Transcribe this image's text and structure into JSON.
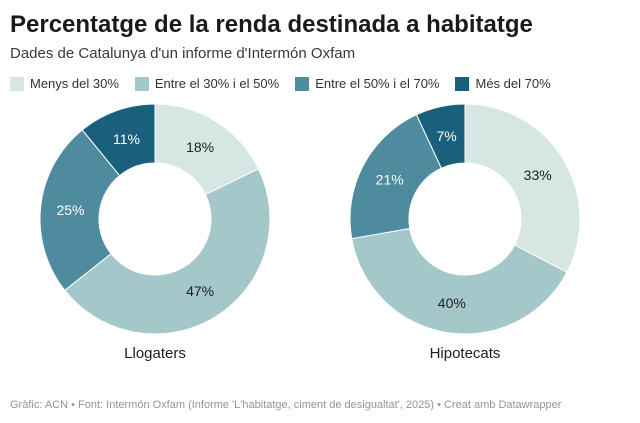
{
  "header": {
    "title": "Percentatge de la renda destinada a habitatge",
    "subtitle": "Dades de Catalunya d'un informe d'Intermón Oxfam"
  },
  "legend": [
    {
      "label": "Menys del 30%",
      "color": "#d6e6e2"
    },
    {
      "label": "Entre el 30% i el 50%",
      "color": "#a4c7ca"
    },
    {
      "label": "Entre el 50% i el 70%",
      "color": "#4f8b9e"
    },
    {
      "label": "Més del 70%",
      "color": "#1a607c"
    }
  ],
  "chart_data": [
    {
      "type": "pie",
      "donut": true,
      "title": "Llogaters",
      "categories": [
        "Menys del 30%",
        "Entre el 30% i el 50%",
        "Entre el 50% i el 70%",
        "Més del 70%"
      ],
      "values": [
        18,
        47,
        25,
        11
      ],
      "labels": [
        "18%",
        "47%",
        "25%",
        "11%"
      ],
      "colors": [
        "#d6e6e2",
        "#a4c7ca",
        "#4f8b9e",
        "#1a607c"
      ],
      "label_colors": [
        "#1d1d1d",
        "#1d1d1d",
        "#ffffff",
        "#ffffff"
      ],
      "start_angle": 0,
      "direction": "clockwise"
    },
    {
      "type": "pie",
      "donut": true,
      "title": "Hipotecats",
      "categories": [
        "Menys del 30%",
        "Entre el 30% i el 50%",
        "Entre el 50% i el 70%",
        "Més del 70%"
      ],
      "values": [
        33,
        40,
        21,
        7
      ],
      "labels": [
        "33%",
        "40%",
        "21%",
        "7%"
      ],
      "colors": [
        "#d6e6e2",
        "#a4c7ca",
        "#4f8b9e",
        "#1a607c"
      ],
      "label_colors": [
        "#1d1d1d",
        "#1d1d1d",
        "#ffffff",
        "#ffffff"
      ],
      "start_angle": 0,
      "direction": "clockwise"
    }
  ],
  "footer": {
    "text": "Gràfic: ACN • Font: Intermón Oxfam (Informe 'L'habitatge, ciment de desigualtat', 2025) • Creat amb Datawrapper"
  }
}
